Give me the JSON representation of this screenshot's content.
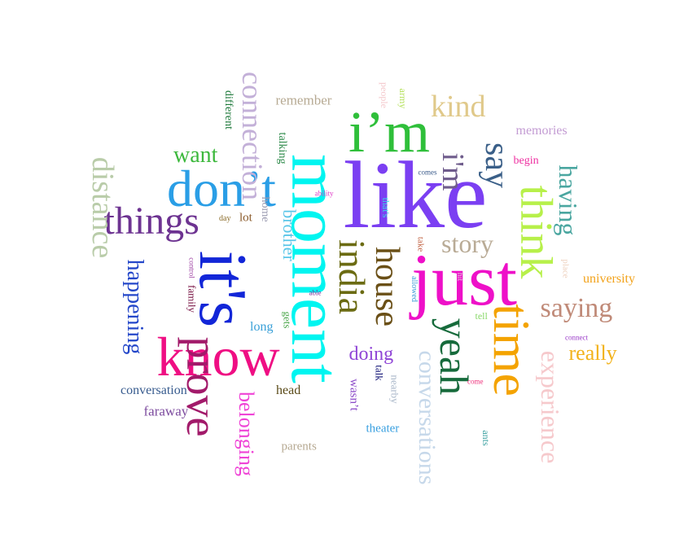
{
  "words": [
    {
      "text": "like",
      "color": "#7b3ff2"
    },
    {
      "text": "moment",
      "color": "#00f5f0"
    },
    {
      "text": "just",
      "color": "#ee10c8"
    },
    {
      "text": "i’m",
      "color": "#2fbf3a"
    },
    {
      "text": "it's",
      "color": "#1226d8"
    },
    {
      "text": "know",
      "color": "#ef0e83"
    },
    {
      "text": "don’t",
      "color": "#2a9ee6"
    },
    {
      "text": "time",
      "color": "#f4a300"
    },
    {
      "text": "think",
      "color": "#b7f04a"
    },
    {
      "text": "prove",
      "color": "#a21a6a"
    },
    {
      "text": "things",
      "color": "#6d3391"
    },
    {
      "text": "yeah",
      "color": "#176b3c"
    },
    {
      "text": "india",
      "color": "#6b6b12"
    },
    {
      "text": "house",
      "color": "#6a4f16"
    },
    {
      "text": "say",
      "color": "#3a5f88"
    },
    {
      "text": "i'm",
      "color": "#6f5c8c"
    },
    {
      "text": "kind",
      "color": "#e0c98a"
    },
    {
      "text": "story",
      "color": "#b9ab96"
    },
    {
      "text": "saying",
      "color": "#c08a78"
    },
    {
      "text": "connection",
      "color": "#c3b0d8"
    },
    {
      "text": "distance",
      "color": "#b9cca9"
    },
    {
      "text": "conversations",
      "color": "#c6d8ea"
    },
    {
      "text": "experience",
      "color": "#f6c9cc"
    },
    {
      "text": "having",
      "color": "#4aa6a0"
    },
    {
      "text": "want",
      "color": "#3cb83c"
    },
    {
      "text": "happening",
      "color": "#2447c9"
    },
    {
      "text": "belonging",
      "color": "#ef43d6"
    },
    {
      "text": "really",
      "color": "#f2b21a"
    },
    {
      "text": "doing",
      "color": "#8f44d6"
    },
    {
      "text": "brother",
      "color": "#5ac6e8"
    },
    {
      "text": "memories",
      "color": "#c39bd3"
    },
    {
      "text": "remember",
      "color": "#b6a992"
    },
    {
      "text": "university",
      "color": "#f2a21a"
    },
    {
      "text": "conversation",
      "color": "#375b8e"
    },
    {
      "text": "faraway",
      "color": "#7c4a9e"
    },
    {
      "text": "head",
      "color": "#5a4a18"
    },
    {
      "text": "parents",
      "color": "#b6a992"
    },
    {
      "text": "theater",
      "color": "#3aa0e0"
    },
    {
      "text": "talking",
      "color": "#2d8a4a"
    },
    {
      "text": "different",
      "color": "#1f7a3c"
    },
    {
      "text": "begin",
      "color": "#ee2ea0"
    },
    {
      "text": "long",
      "color": "#3aa0d8"
    },
    {
      "text": "family",
      "color": "#7a1646"
    },
    {
      "text": "home",
      "color": "#9a9ab0"
    },
    {
      "text": "lot",
      "color": "#8a5a2a"
    },
    {
      "text": "gets",
      "color": "#4aa64a"
    },
    {
      "text": "talk",
      "color": "#181a7a"
    },
    {
      "text": "wasn’t",
      "color": "#8a48c8"
    },
    {
      "text": "nearby",
      "color": "#a8b6c8"
    },
    {
      "text": "people",
      "color": "#f4c8cc"
    },
    {
      "text": "army",
      "color": "#b4e05a"
    },
    {
      "text": "place",
      "color": "#eed0bc"
    },
    {
      "text": "tell",
      "color": "#8ad86a"
    },
    {
      "text": "ants",
      "color": "#3aa0a0"
    },
    {
      "text": "that's",
      "color": "#3ad8e8"
    },
    {
      "text": "take",
      "color": "#c06040"
    },
    {
      "text": "allowed",
      "color": "#3a9ad8"
    },
    {
      "text": "ability",
      "color": "#e040c8"
    },
    {
      "text": "able",
      "color": "#7a2a9a"
    },
    {
      "text": "control",
      "color": "#9a3aa0"
    },
    {
      "text": "day",
      "color": "#8a6a28"
    },
    {
      "text": "comes",
      "color": "#3a5a8a"
    },
    {
      "text": "connect",
      "color": "#9a3ac8"
    },
    {
      "text": "come",
      "color": "#ee2e7a"
    },
    {
      "text": "hit",
      "color": "#e0c8d8"
    }
  ]
}
